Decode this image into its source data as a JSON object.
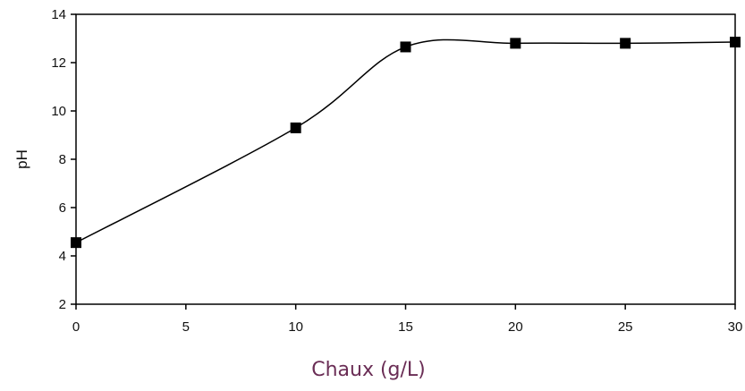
{
  "chart_data": {
    "type": "line",
    "title": "",
    "xlabel": "Chaux (g/L)",
    "ylabel": "pH",
    "xlim": [
      0,
      30
    ],
    "ylim": [
      2,
      14
    ],
    "xticks": [
      "0",
      "5",
      "10",
      "15",
      "20",
      "25",
      "30"
    ],
    "yticks": [
      "2",
      "4",
      "6",
      "8",
      "10",
      "12",
      "14"
    ],
    "grid": false,
    "legend": "none",
    "smoothed": true,
    "marker": "square",
    "series": [
      {
        "x": [
          0,
          10,
          15,
          20,
          25,
          30
        ],
        "values": [
          4.55,
          9.3,
          12.65,
          12.8,
          12.8,
          12.85
        ],
        "color": "#000000"
      }
    ]
  }
}
